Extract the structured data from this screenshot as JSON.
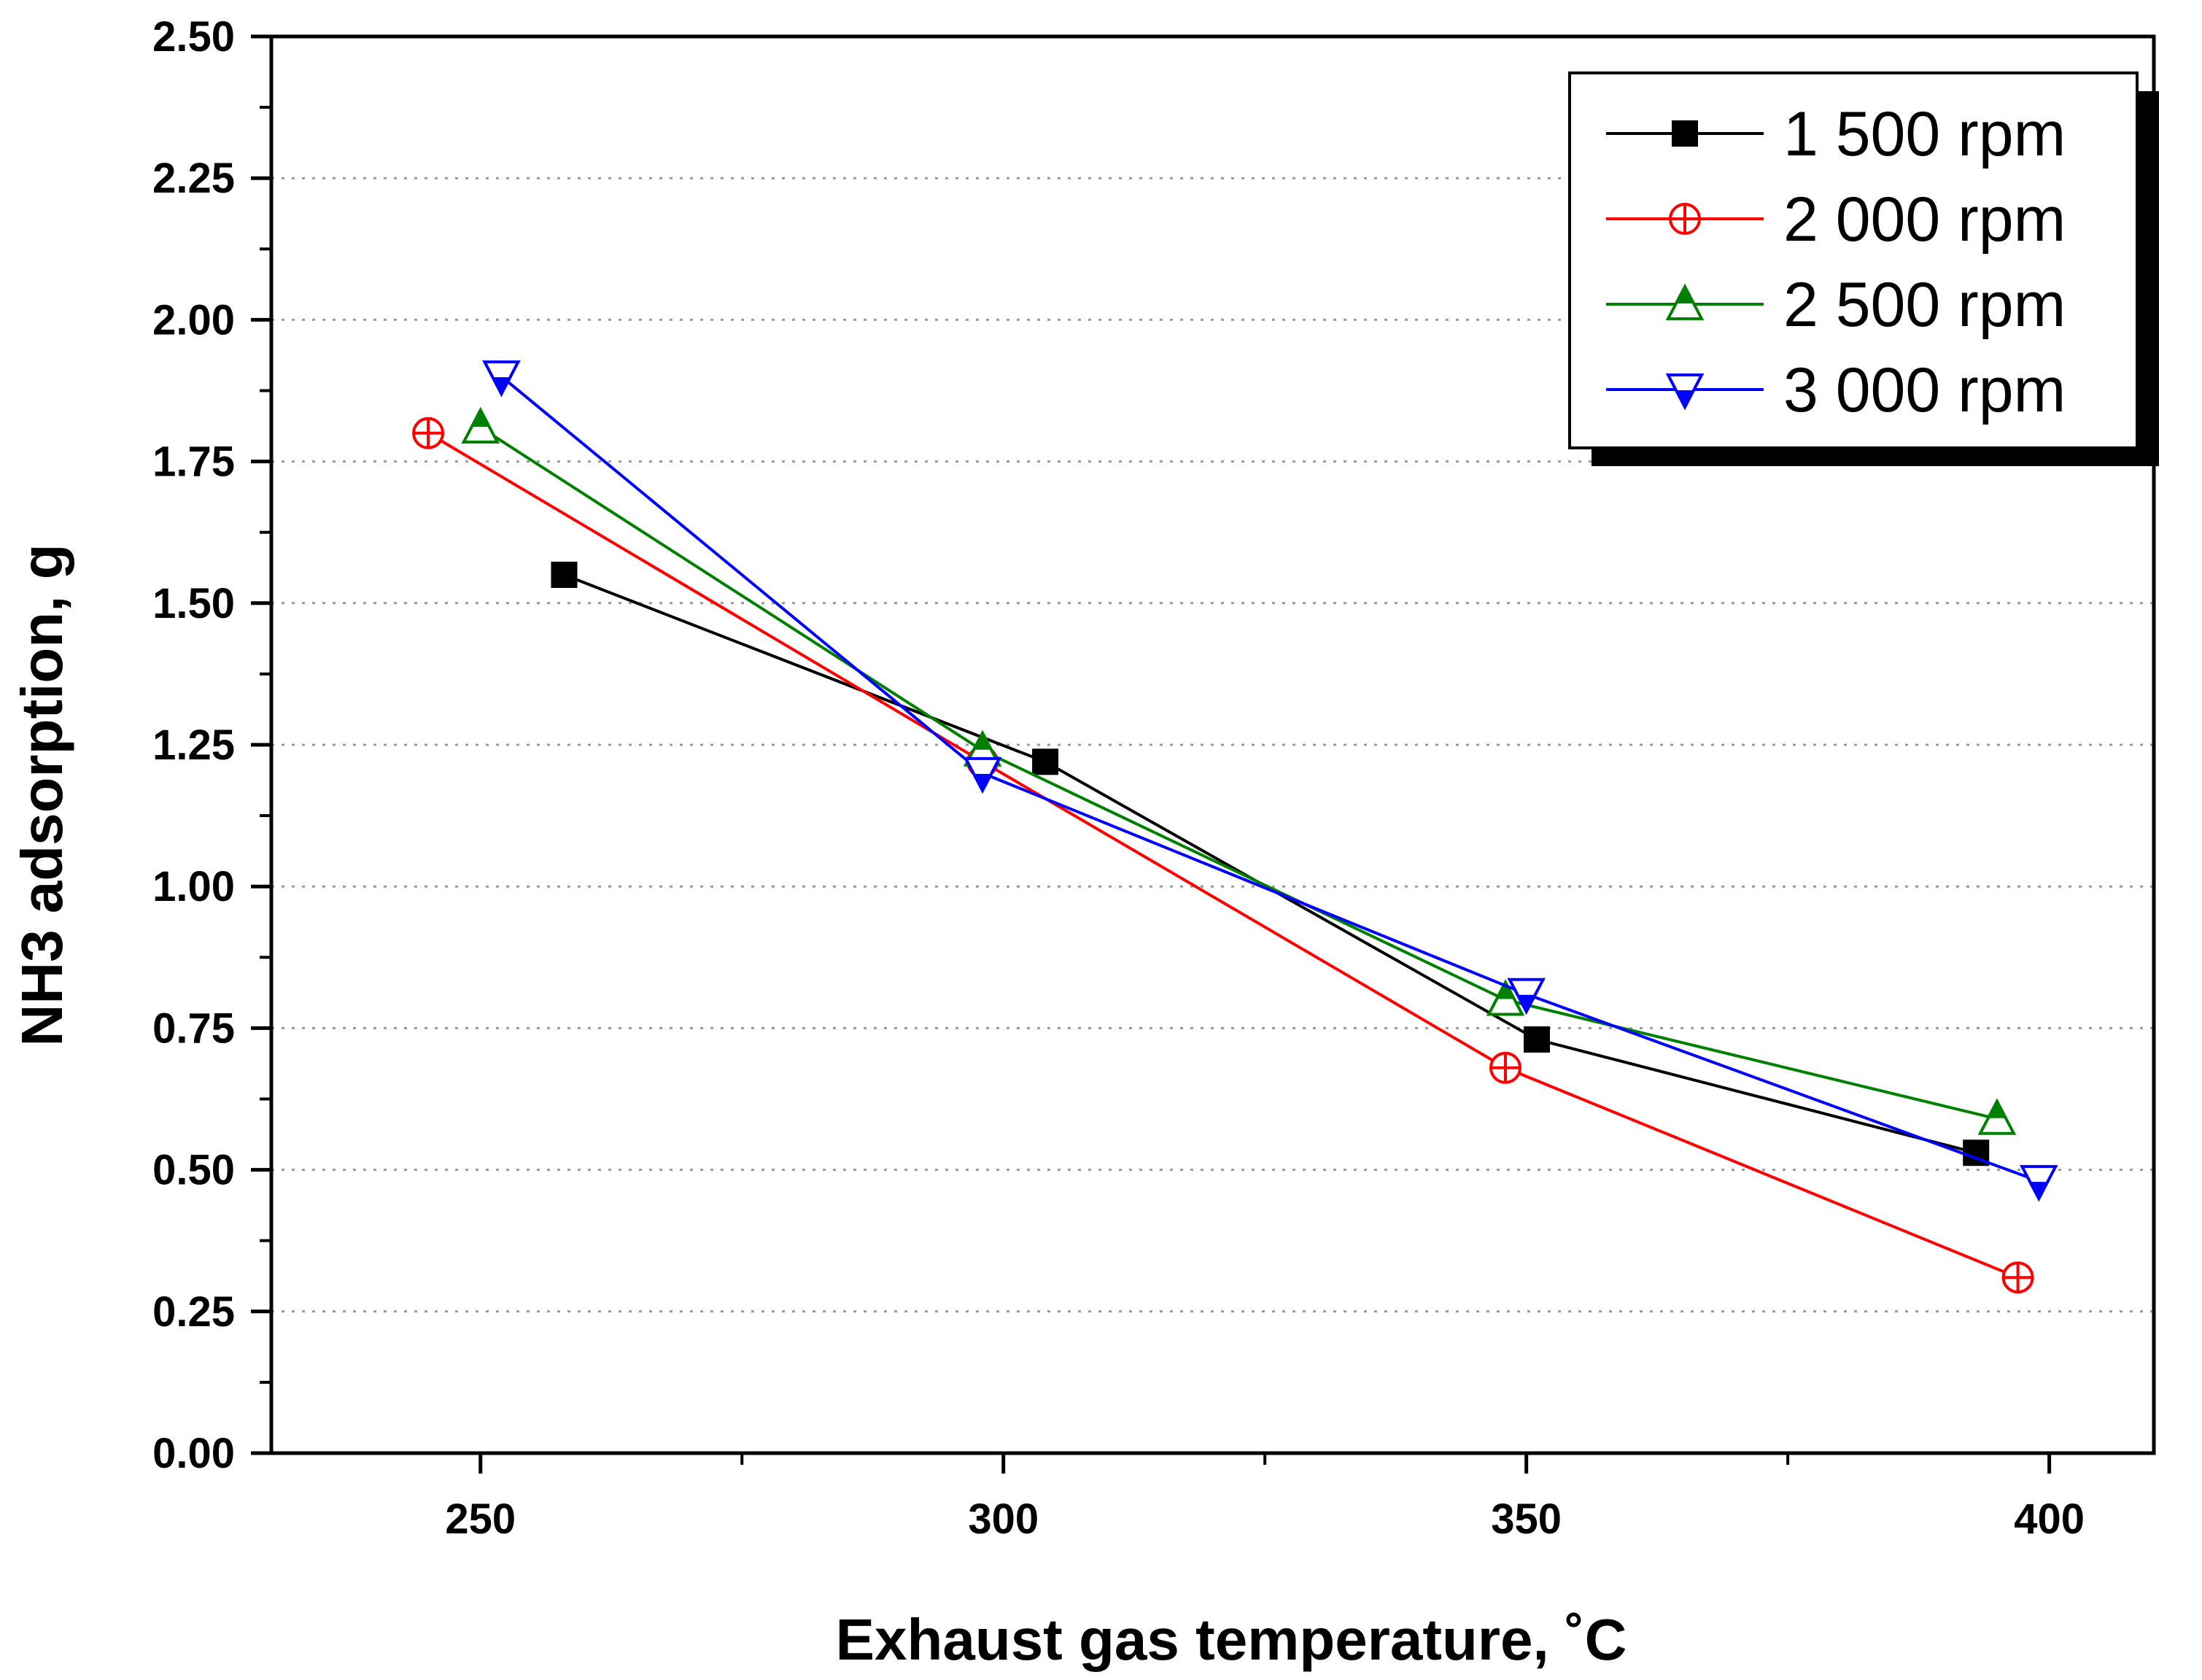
{
  "chart_data": {
    "type": "line",
    "title": "",
    "xlabel": "Exhaust gas temperature, ˚C",
    "ylabel": "NH3 adsorption, g",
    "xlim": [
      230,
      410
    ],
    "ylim": [
      0,
      2.5
    ],
    "xticks": [
      250,
      300,
      350,
      400
    ],
    "xtick_labels": [
      "250",
      "300",
      "350",
      "400"
    ],
    "yticks": [
      0,
      0.25,
      0.5,
      0.75,
      1.0,
      1.25,
      1.5,
      1.75,
      2.0,
      2.25,
      2.5
    ],
    "ytick_labels": [
      "0.00",
      "0.25",
      "0.50",
      "0.75",
      "1.00",
      "1.25",
      "1.50",
      "1.75",
      "2.00",
      "2.25",
      "2.50"
    ],
    "grid": "horizontal-dotted",
    "legend_position": "top-right",
    "series": [
      {
        "name": "1 500 rpm",
        "color": "#000000",
        "marker": "square-filled",
        "x": [
          258,
          304,
          351,
          393
        ],
        "y": [
          1.55,
          1.22,
          0.73,
          0.53
        ]
      },
      {
        "name": "2 000 rpm",
        "color": "#ff0000",
        "marker": "circle-plus",
        "x": [
          245,
          298,
          348,
          397
        ],
        "y": [
          1.8,
          1.22,
          0.68,
          0.31
        ]
      },
      {
        "name": "2 500 rpm",
        "color": "#008000",
        "marker": "triangle-up-half",
        "x": [
          250,
          298,
          348,
          395
        ],
        "y": [
          1.81,
          1.24,
          0.8,
          0.59
        ]
      },
      {
        "name": "3 000 rpm",
        "color": "#0000ff",
        "marker": "triangle-down-half",
        "x": [
          252,
          298,
          350,
          399
        ],
        "y": [
          1.9,
          1.2,
          0.81,
          0.48
        ]
      }
    ]
  }
}
